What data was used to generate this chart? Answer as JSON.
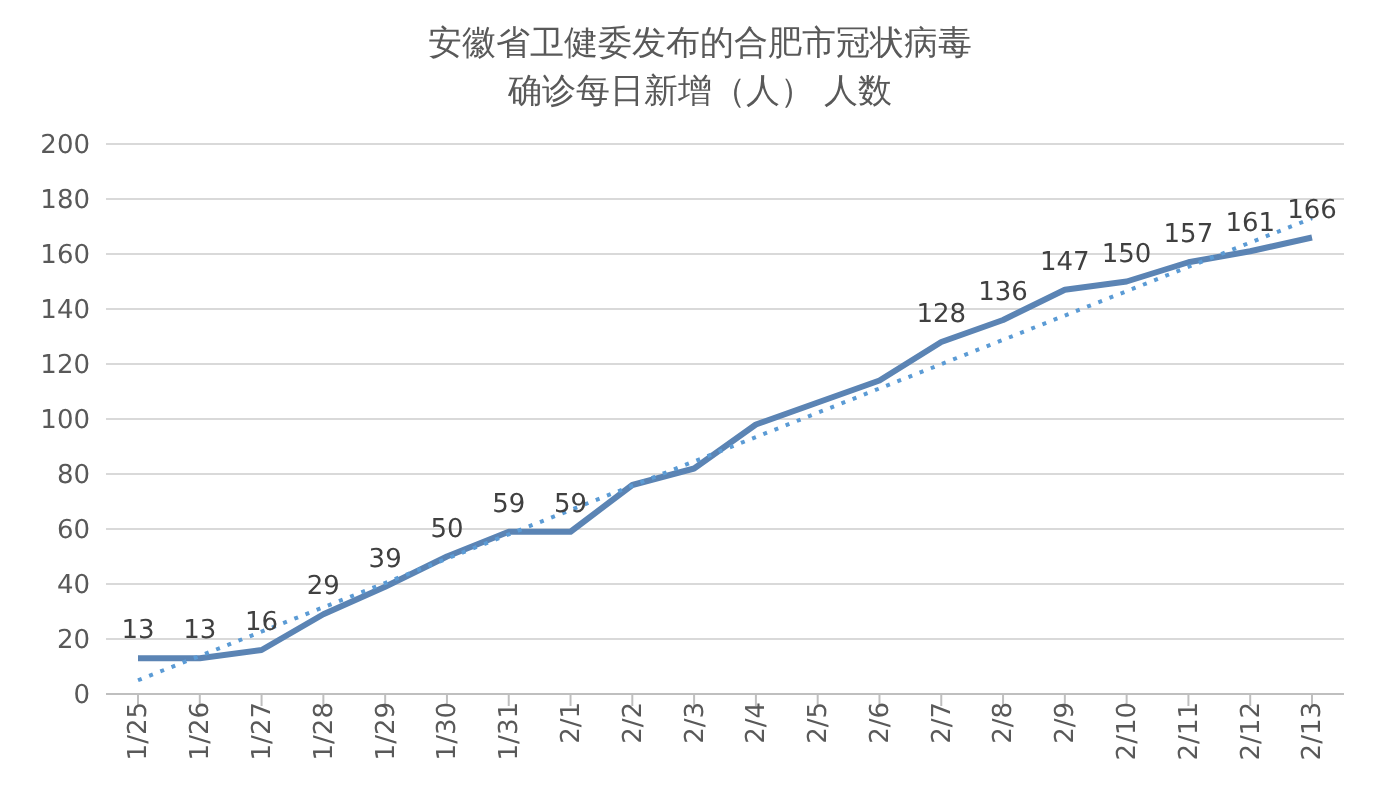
{
  "chart_data": {
    "type": "line",
    "title": "安徽省卫健委发布的合肥市冠状病毒",
    "subtitle": "确诊每日新增（人） 人数",
    "categories": [
      "1/25",
      "1/26",
      "1/27",
      "1/28",
      "1/29",
      "1/30",
      "1/31",
      "2/1",
      "2/2",
      "2/3",
      "2/4",
      "2/5",
      "2/6",
      "2/7",
      "2/8",
      "2/9",
      "2/10",
      "2/11",
      "2/12",
      "2/13"
    ],
    "series": [
      {
        "color": "#5b84b4",
        "values": [
          13,
          13,
          16,
          29,
          39,
          50,
          59,
          59,
          76,
          82,
          98,
          106,
          114,
          128,
          136,
          147,
          150,
          157,
          161,
          166
        ],
        "value_labels": [
          "13",
          "13",
          "16",
          "29",
          "39",
          "50",
          "59",
          "59",
          null,
          null,
          null,
          null,
          null,
          "128",
          "136",
          "147",
          "150",
          "157",
          "161",
          "166"
        ]
      },
      {
        "type": "line",
        "color": "#5b9bd5",
        "line_style": "dotted",
        "x": [
          "1/25",
          "2/13"
        ],
        "values": [
          5,
          173
        ]
      }
    ],
    "ylim": [
      0,
      200
    ],
    "yticks": [
      0,
      20,
      40,
      60,
      80,
      100,
      120,
      140,
      160,
      180,
      200
    ],
    "grid": "y",
    "marker": "none"
  }
}
